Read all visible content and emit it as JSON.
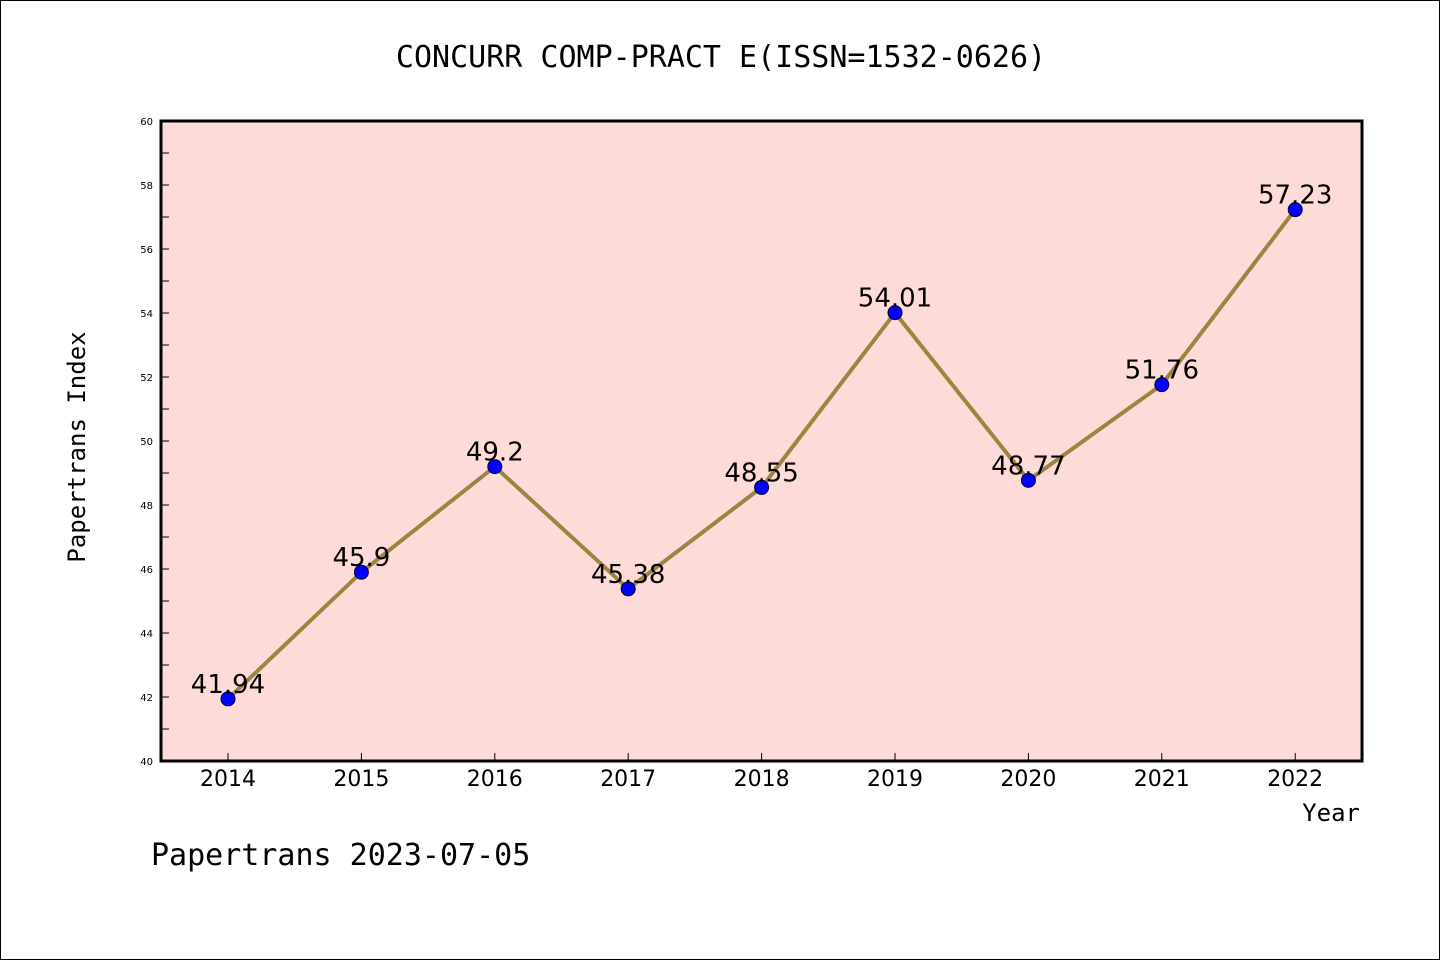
{
  "footer": "Papertrans 2023-07-05",
  "colors": {
    "plot_background": "#fddbd8",
    "line": "#9c8540",
    "marker": "#0000ff",
    "axis": "#000000"
  },
  "chart_data": {
    "type": "line",
    "title": "CONCURR COMP-PRACT E(ISSN=1532-0626)",
    "xlabel": "Year",
    "ylabel": "Papertrans Index",
    "categories": [
      "2014",
      "2015",
      "2016",
      "2017",
      "2018",
      "2019",
      "2020",
      "2021",
      "2022"
    ],
    "series": [
      {
        "values": [
          41.94,
          45.9,
          49.2,
          45.38,
          48.55,
          54.01,
          48.77,
          51.76,
          57.23
        ],
        "data_labels": [
          "41.94",
          "45.9",
          "49.2",
          "45.38",
          "48.55",
          "54.01",
          "48.77",
          "51.76",
          "57.23"
        ]
      }
    ],
    "ylim": [
      40,
      60
    ],
    "yticks": [
      40,
      42,
      44,
      46,
      48,
      50,
      52,
      54,
      56,
      58,
      60
    ],
    "grid": false,
    "legend": "none"
  }
}
